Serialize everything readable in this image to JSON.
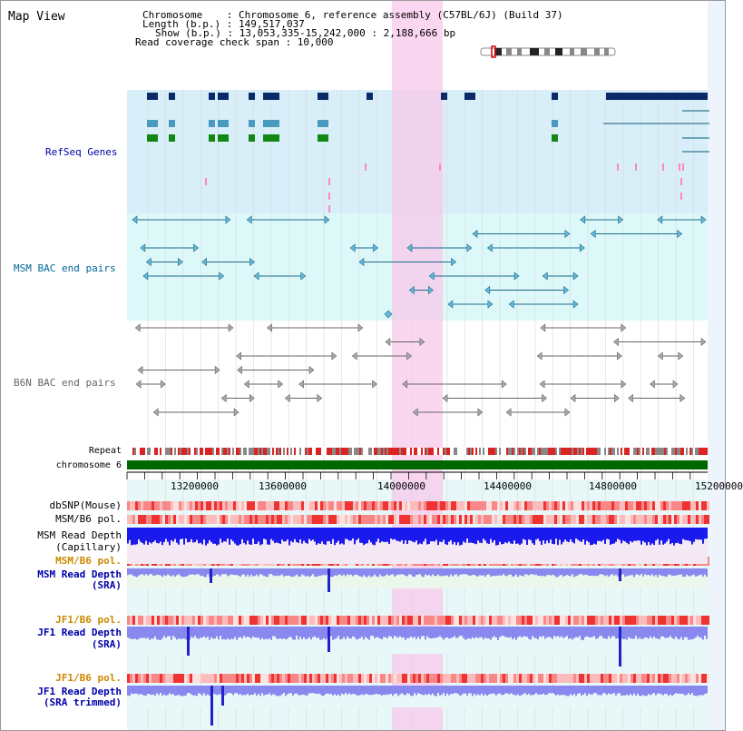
{
  "header": {
    "title": "Map View",
    "chromosome_line": "Chromosome    : Chromosome 6, reference assembly (C57BL/6J) (Build 37)",
    "length_line": "Length (b.p.) : 149,517,037",
    "show_line": "Show (b.p.) : 13,053,335-15,242,000 : 2,188,666 bp",
    "coverage_line": "Read coverage check span : 10,000"
  },
  "tracks": {
    "refseq_label": "RefSeq Genes",
    "msm_bac_label": "MSM BAC end pairs",
    "b6n_bac_label": "B6N BAC end pairs",
    "repeat_label": "Repeat",
    "chromosome_label": "chromosome 6",
    "dbsnp_label": "dbSNP(Mouse)",
    "msm_b6_pol_label_1": "MSM/B6 pol.",
    "msm_depth_cap_label_1": "MSM Read Depth",
    "msm_depth_cap_label_2": "(Capillary)",
    "msm_b6_pol_label_2": "MSM/B6 pol.",
    "msm_depth_sra_label_1": "MSM Read Depth",
    "msm_depth_sra_label_2": "(SRA)",
    "jf1_b6_pol_label_1": "JF1/B6 pol.",
    "jf1_depth_sra_label_1": "JF1 Read Depth",
    "jf1_depth_sra_label_2": "(SRA)",
    "jf1_b6_pol_label_2": "JF1/B6 pol.",
    "jf1_depth_trim_label_1": "JF1 Read Depth",
    "jf1_depth_trim_label_2": "(SRA trimmed)"
  },
  "axis": {
    "ticks": [
      "13200000",
      "13600000",
      "14000000",
      "14400000",
      "14800000",
      "15200000"
    ]
  },
  "colors": {
    "refseq_bg": "#d8eef8",
    "msm_bg": "#ddf8f8",
    "b6n_bg": "#f0f0f0",
    "highlight": "#f8c8ec",
    "refseq_label": "#0000aa",
    "msm_label": "#006699",
    "b6n_label": "#666666",
    "pol_label": "#cc8800",
    "depth_label": "#0000aa",
    "depth_fill": "#7777ee",
    "chromosome_bar": "#006600"
  }
}
